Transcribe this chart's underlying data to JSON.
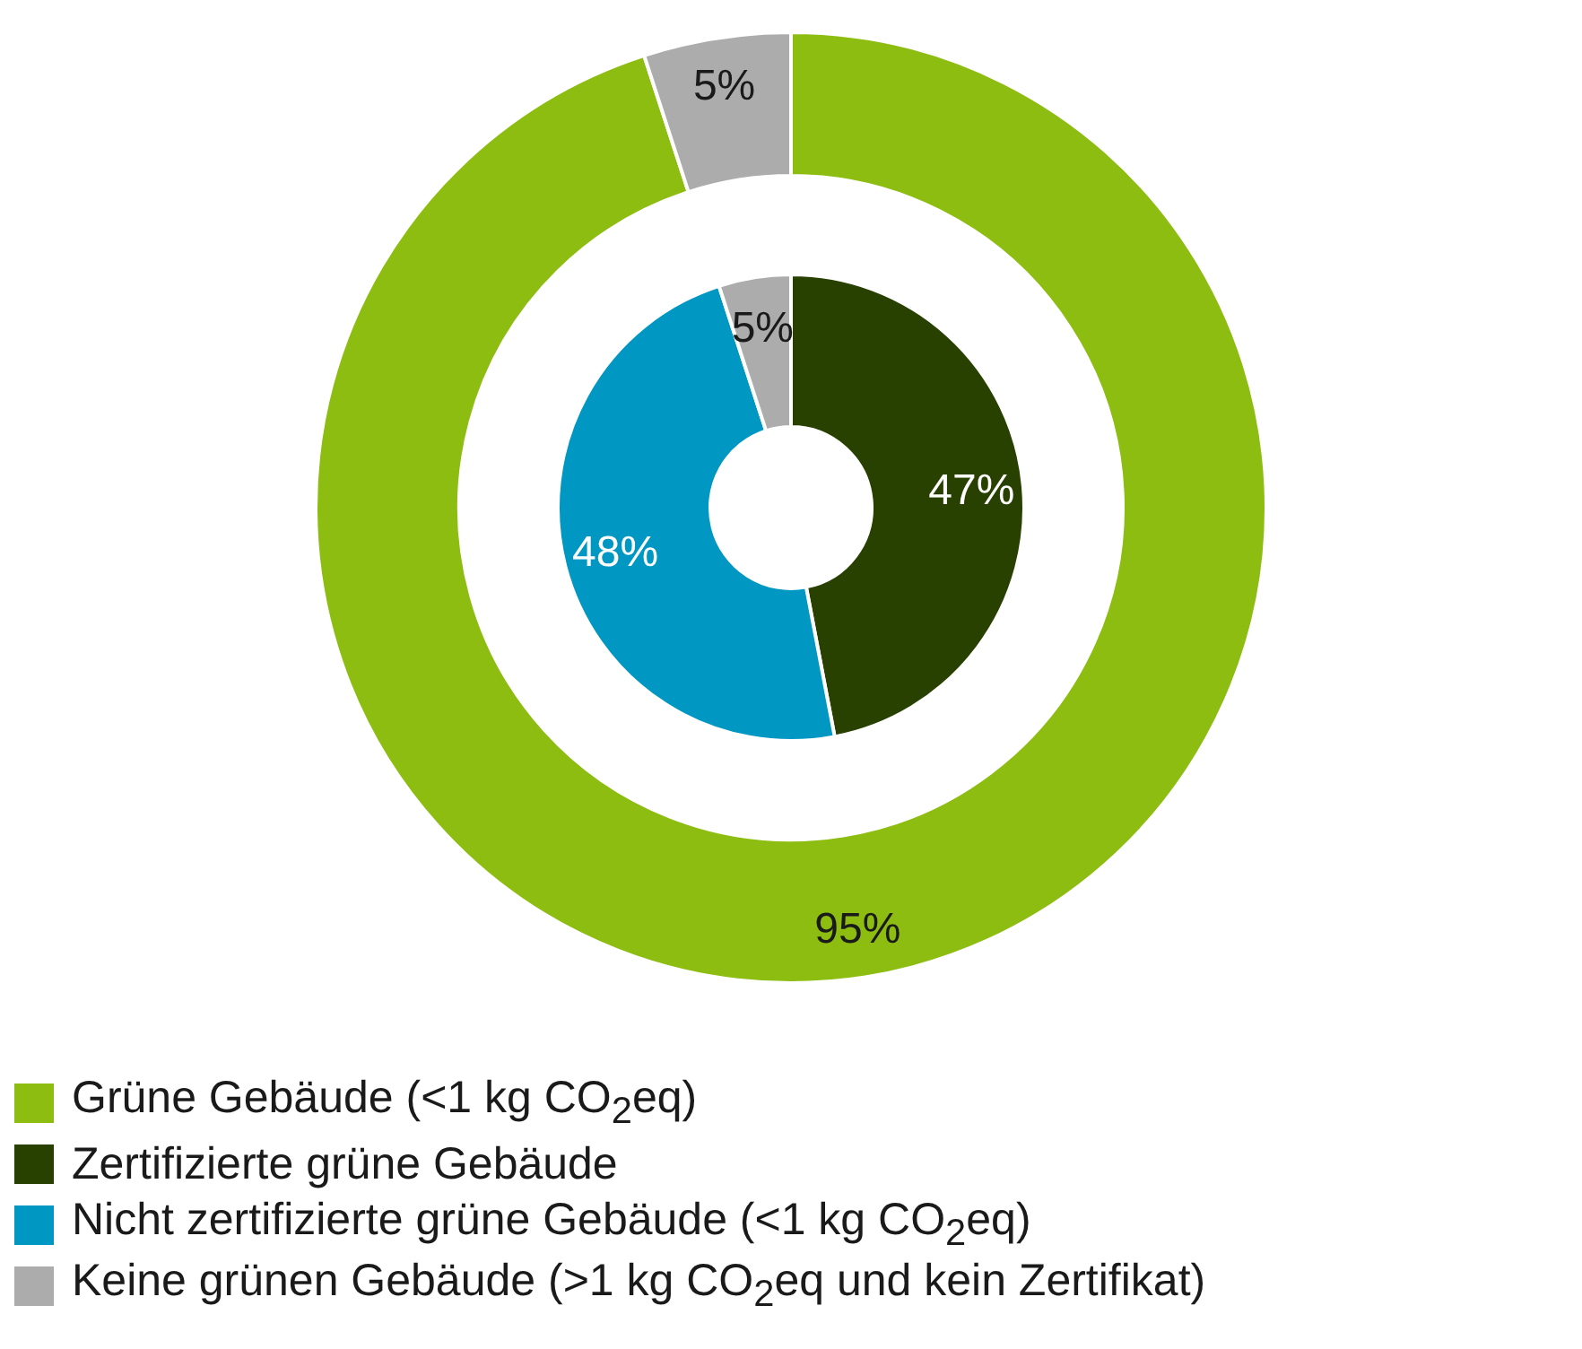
{
  "chart_data": {
    "type": "donut",
    "categories": [
      "Grüne Gebäude (<1 kg CO$_{2}$eq)",
      "Zertifizierte grüne Gebäude",
      "Nicht zertifizierte grüne Gebäude (<1 kg CO$_{2}$eq)",
      "Keine grünen Gebäude (>1 kg CO$_{2}$eq und kein Zertifikat)"
    ],
    "colors": [
      "#8cbd10",
      "#284000",
      "#0097c2",
      "#acacac"
    ],
    "series": [
      {
        "values": [
          95,
          null,
          null,
          5
        ],
        "value_labels": [
          "95%",
          null,
          null,
          "5%"
        ]
      },
      {
        "values": [
          null,
          47,
          48,
          5
        ],
        "value_labels": [
          null,
          "47%",
          "48%",
          "5%"
        ]
      }
    ],
    "legend": "bottom left"
  }
}
